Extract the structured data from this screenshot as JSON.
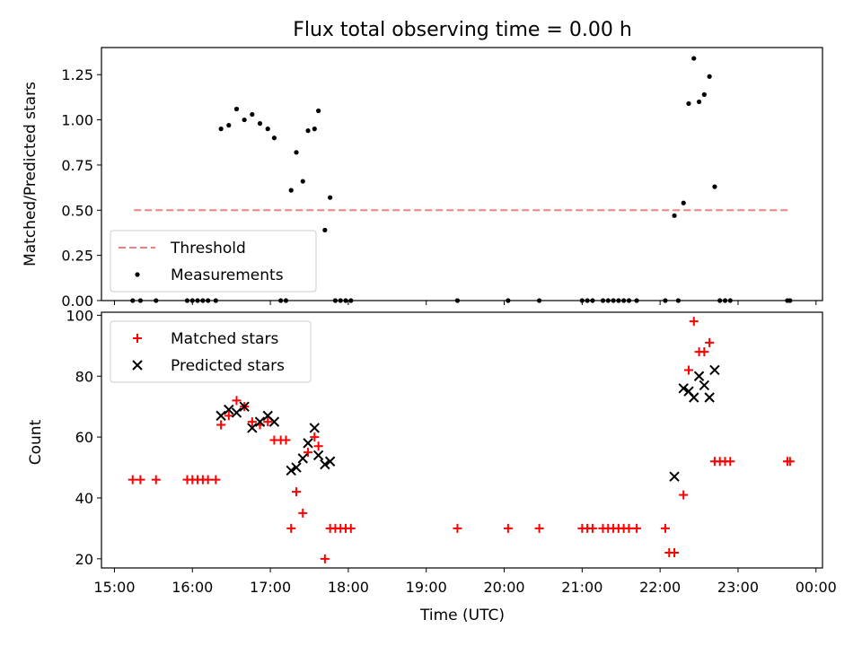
{
  "chart_data": [
    {
      "type": "scatter",
      "title": "Flux total observing time = 0.00 h",
      "ylabel": "Matched/Predicted stars",
      "xlabel": "",
      "ylim": [
        0,
        1.4
      ],
      "xlim": [
        "14:50",
        "00:05"
      ],
      "y_ticks": [
        0.0,
        0.25,
        0.5,
        0.75,
        1.0,
        1.25
      ],
      "y_tick_labels": [
        "0.00",
        "0.25",
        "0.50",
        "0.75",
        "1.00",
        "1.25"
      ],
      "legend_position": "lower-left",
      "threshold": {
        "name": "Threshold",
        "y": 0.5,
        "x_start": "15:15",
        "x_end": "23:40",
        "color": "#f08080",
        "style": "dashed"
      },
      "series": [
        {
          "name": "Measurements",
          "color": "#000000",
          "marker": "dot",
          "points": [
            [
              "15:14",
              0
            ],
            [
              "15:20",
              0
            ],
            [
              "15:32",
              0
            ],
            [
              "15:56",
              0
            ],
            [
              "16:00",
              0
            ],
            [
              "16:04",
              0
            ],
            [
              "16:08",
              0
            ],
            [
              "16:12",
              0
            ],
            [
              "16:18",
              0
            ],
            [
              "16:22",
              0.95
            ],
            [
              "16:28",
              0.97
            ],
            [
              "16:34",
              1.06
            ],
            [
              "16:40",
              1.0
            ],
            [
              "16:46",
              1.03
            ],
            [
              "16:52",
              0.98
            ],
            [
              "16:58",
              0.95
            ],
            [
              "17:03",
              0.9
            ],
            [
              "17:08",
              0
            ],
            [
              "17:12",
              0
            ],
            [
              "17:16",
              0.61
            ],
            [
              "17:20",
              0.82
            ],
            [
              "17:25",
              0.66
            ],
            [
              "17:29",
              0.94
            ],
            [
              "17:34",
              0.95
            ],
            [
              "17:37",
              1.05
            ],
            [
              "17:42",
              0.39
            ],
            [
              "17:46",
              0.57
            ],
            [
              "17:50",
              0
            ],
            [
              "17:54",
              0
            ],
            [
              "17:58",
              0
            ],
            [
              "18:02",
              0
            ],
            [
              "19:24",
              0
            ],
            [
              "20:03",
              0
            ],
            [
              "20:27",
              0
            ],
            [
              "21:00",
              0
            ],
            [
              "21:04",
              0
            ],
            [
              "21:08",
              0
            ],
            [
              "21:16",
              0
            ],
            [
              "21:20",
              0
            ],
            [
              "21:24",
              0
            ],
            [
              "21:28",
              0
            ],
            [
              "21:32",
              0
            ],
            [
              "21:36",
              0
            ],
            [
              "21:42",
              0
            ],
            [
              "22:04",
              0
            ],
            [
              "22:11",
              0.47
            ],
            [
              "22:14",
              0
            ],
            [
              "22:18",
              0.54
            ],
            [
              "22:22",
              1.09
            ],
            [
              "22:26",
              1.34
            ],
            [
              "22:30",
              1.1
            ],
            [
              "22:34",
              1.14
            ],
            [
              "22:38",
              1.24
            ],
            [
              "22:42",
              0.63
            ],
            [
              "22:46",
              0
            ],
            [
              "22:50",
              0
            ],
            [
              "22:54",
              0
            ],
            [
              "23:38",
              0
            ],
            [
              "23:40",
              0
            ]
          ]
        }
      ]
    },
    {
      "type": "scatter",
      "title": "",
      "ylabel": "Count",
      "xlabel": "Time (UTC)",
      "ylim": [
        17,
        101
      ],
      "xlim": [
        "14:50",
        "00:05"
      ],
      "y_ticks": [
        20,
        40,
        60,
        80,
        100
      ],
      "y_tick_labels": [
        "20",
        "40",
        "60",
        "80",
        "100"
      ],
      "x_ticks": [
        "15:00",
        "16:00",
        "17:00",
        "18:00",
        "19:00",
        "20:00",
        "21:00",
        "22:00",
        "23:00",
        "24:00"
      ],
      "x_tick_labels": [
        "15:00",
        "16:00",
        "17:00",
        "18:00",
        "19:00",
        "20:00",
        "21:00",
        "22:00",
        "23:00",
        "00:00"
      ],
      "legend_position": "upper-left",
      "series": [
        {
          "name": "Matched stars",
          "color": "#ff0000",
          "marker": "plus",
          "points": [
            [
              "15:14",
              46
            ],
            [
              "15:20",
              46
            ],
            [
              "15:32",
              46
            ],
            [
              "15:56",
              46
            ],
            [
              "16:00",
              46
            ],
            [
              "16:04",
              46
            ],
            [
              "16:08",
              46
            ],
            [
              "16:12",
              46
            ],
            [
              "16:18",
              46
            ],
            [
              "16:22",
              64
            ],
            [
              "16:28",
              67
            ],
            [
              "16:34",
              72
            ],
            [
              "16:40",
              70
            ],
            [
              "16:46",
              65
            ],
            [
              "16:52",
              64
            ],
            [
              "16:58",
              65
            ],
            [
              "17:03",
              59
            ],
            [
              "17:08",
              59
            ],
            [
              "17:12",
              59
            ],
            [
              "17:16",
              30
            ],
            [
              "17:20",
              42
            ],
            [
              "17:25",
              35
            ],
            [
              "17:29",
              55
            ],
            [
              "17:34",
              60
            ],
            [
              "17:37",
              57
            ],
            [
              "17:42",
              20
            ],
            [
              "17:46",
              30
            ],
            [
              "17:50",
              30
            ],
            [
              "17:54",
              30
            ],
            [
              "17:58",
              30
            ],
            [
              "18:02",
              30
            ],
            [
              "19:24",
              30
            ],
            [
              "20:03",
              30
            ],
            [
              "20:27",
              30
            ],
            [
              "21:00",
              30
            ],
            [
              "21:04",
              30
            ],
            [
              "21:08",
              30
            ],
            [
              "21:16",
              30
            ],
            [
              "21:20",
              30
            ],
            [
              "21:24",
              30
            ],
            [
              "21:28",
              30
            ],
            [
              "21:32",
              30
            ],
            [
              "21:36",
              30
            ],
            [
              "21:42",
              30
            ],
            [
              "22:04",
              30
            ],
            [
              "22:07",
              22
            ],
            [
              "22:11",
              22
            ],
            [
              "22:18",
              41
            ],
            [
              "22:22",
              82
            ],
            [
              "22:26",
              98
            ],
            [
              "22:30",
              88
            ],
            [
              "22:34",
              88
            ],
            [
              "22:38",
              91
            ],
            [
              "22:42",
              52
            ],
            [
              "22:46",
              52
            ],
            [
              "22:50",
              52
            ],
            [
              "22:54",
              52
            ],
            [
              "23:38",
              52
            ],
            [
              "23:40",
              52
            ]
          ]
        },
        {
          "name": "Predicted stars",
          "color": "#000000",
          "marker": "x",
          "points": [
            [
              "16:22",
              67
            ],
            [
              "16:28",
              69
            ],
            [
              "16:34",
              68
            ],
            [
              "16:40",
              70
            ],
            [
              "16:46",
              63
            ],
            [
              "16:52",
              65
            ],
            [
              "16:58",
              67
            ],
            [
              "17:03",
              65
            ],
            [
              "17:16",
              49
            ],
            [
              "17:20",
              50
            ],
            [
              "17:25",
              53
            ],
            [
              "17:29",
              58
            ],
            [
              "17:34",
              63
            ],
            [
              "17:37",
              54
            ],
            [
              "17:42",
              51
            ],
            [
              "17:46",
              52
            ],
            [
              "22:11",
              47
            ],
            [
              "22:18",
              76
            ],
            [
              "22:22",
              75
            ],
            [
              "22:26",
              73
            ],
            [
              "22:30",
              80
            ],
            [
              "22:34",
              77
            ],
            [
              "22:38",
              73
            ],
            [
              "22:42",
              82
            ]
          ]
        }
      ]
    }
  ]
}
